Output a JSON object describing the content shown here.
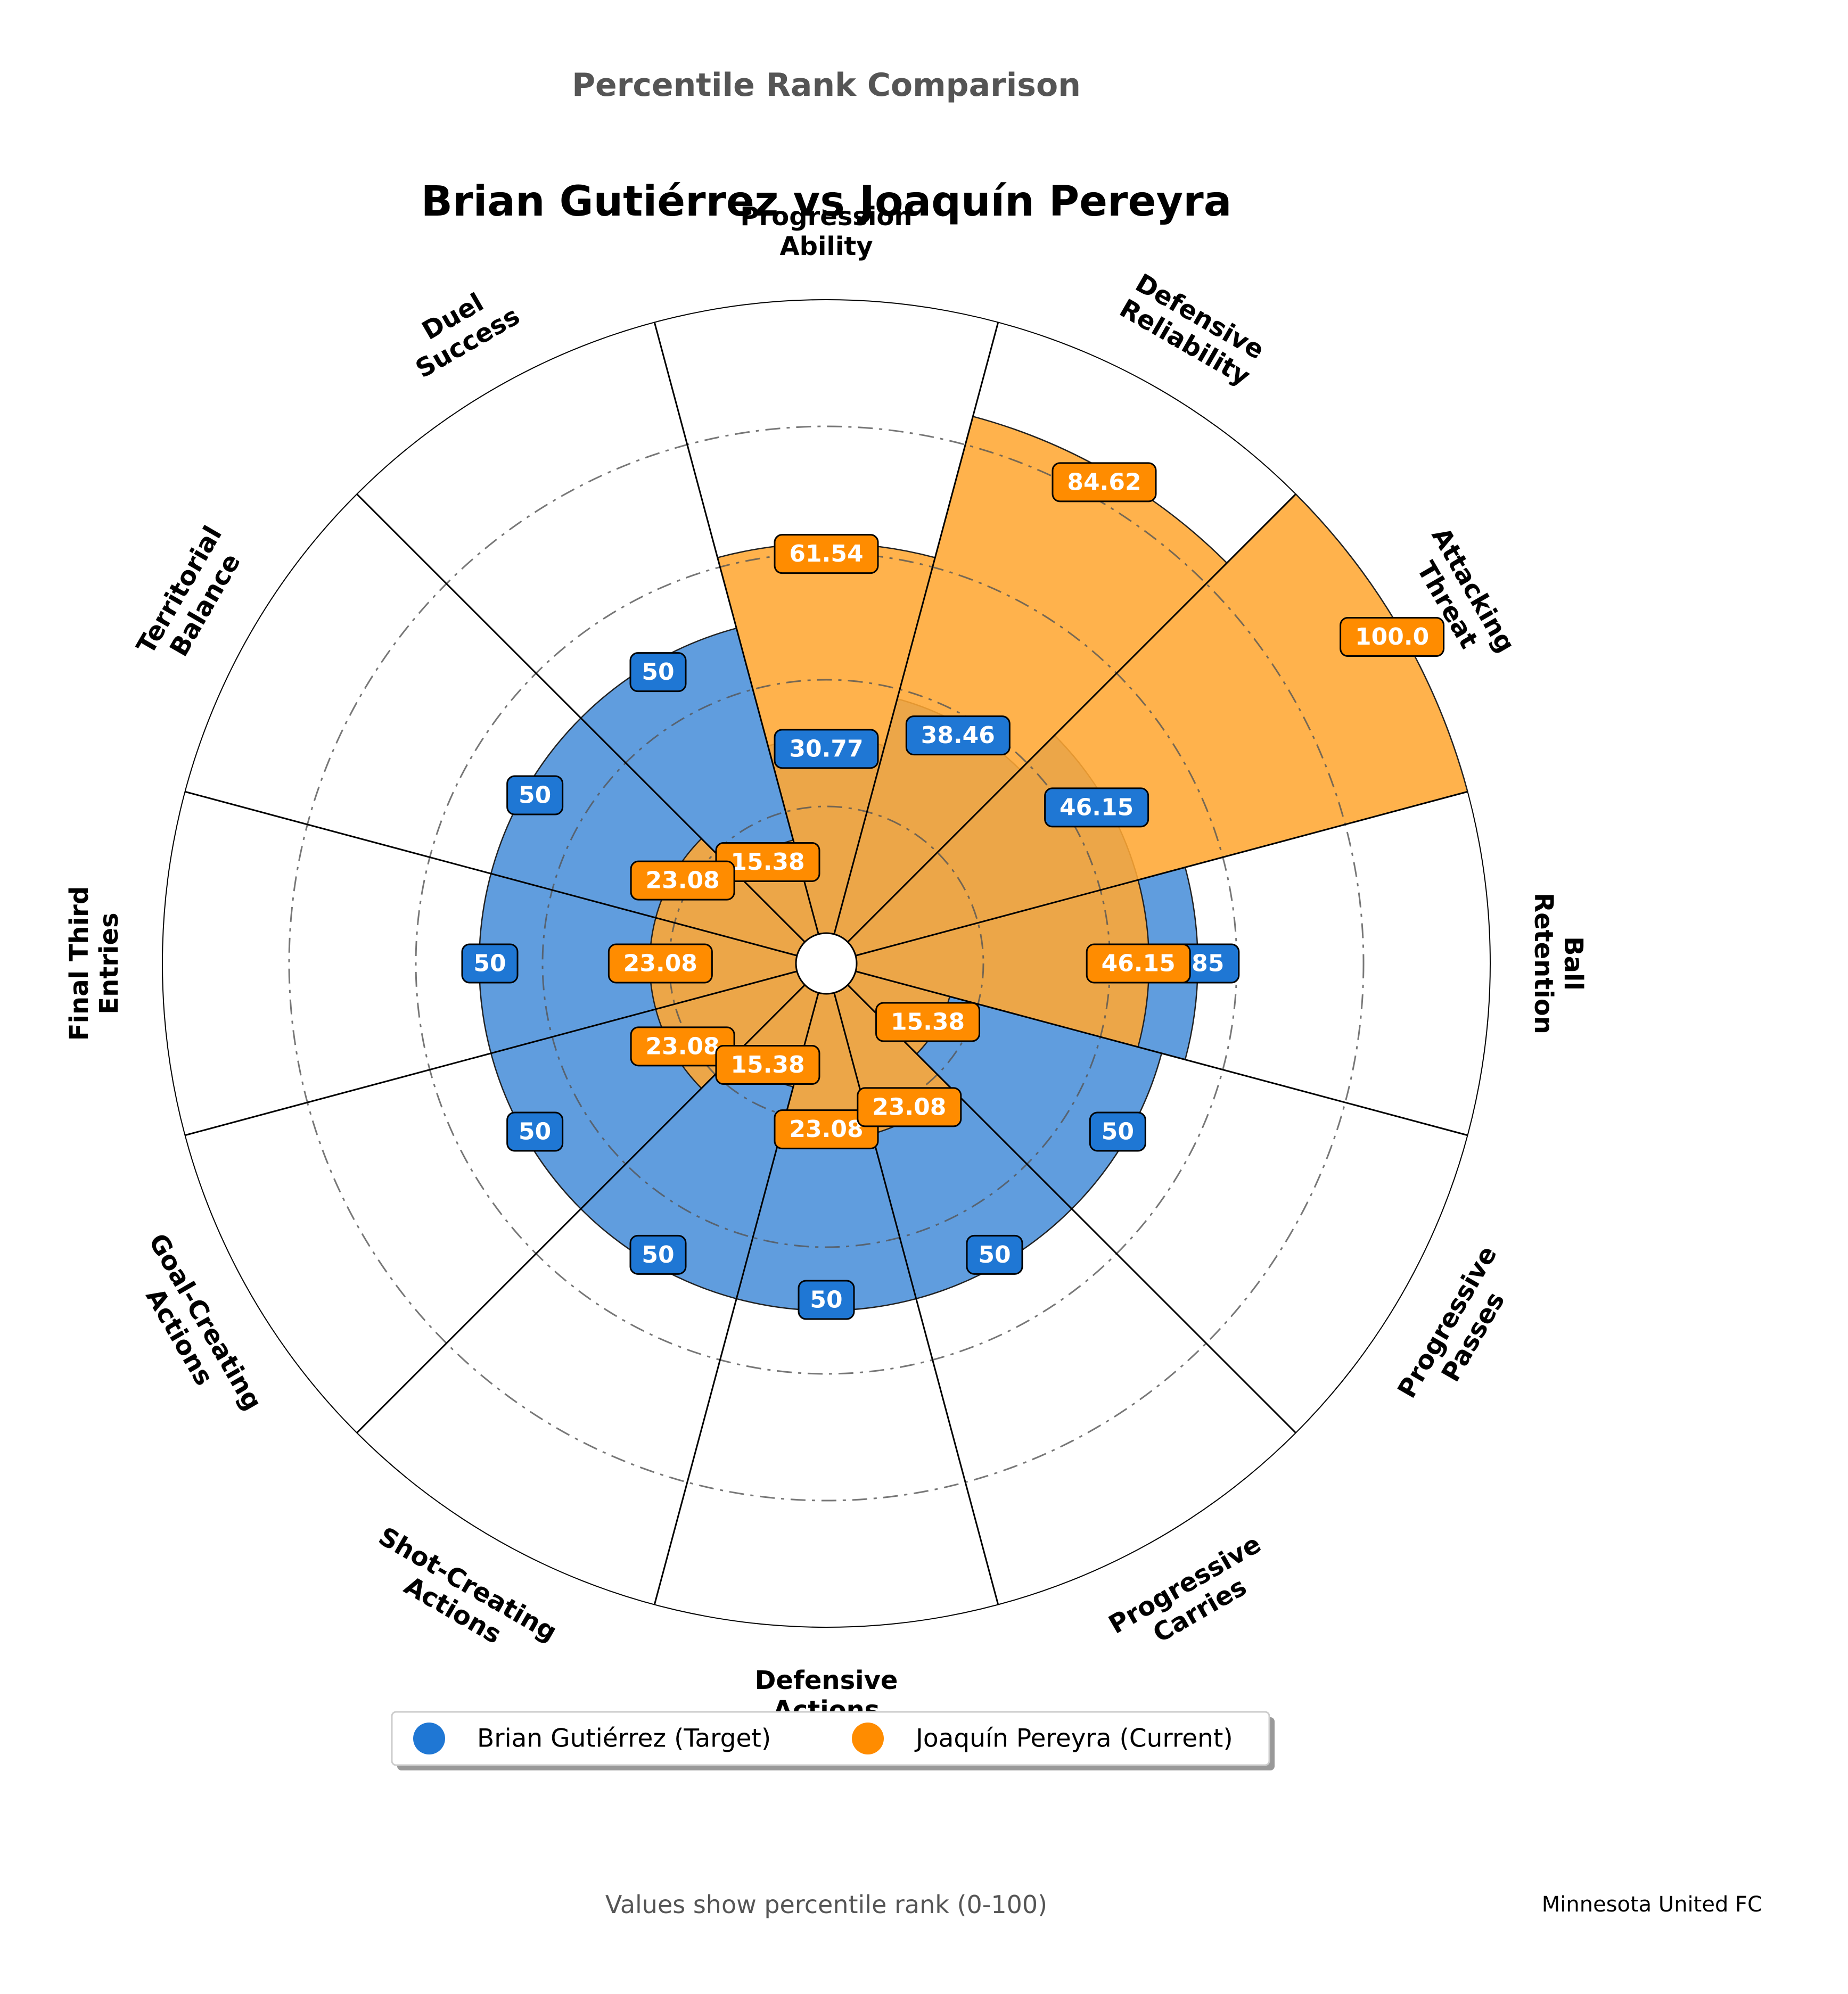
{
  "figure": {
    "suptitle": "Percentile Rank Comparison",
    "title": "Brian Gutiérrez vs Joaquín Pereyra",
    "footer_note": "Values show percentile rank (0-100)",
    "club": "Minnesota United FC"
  },
  "legend": {
    "placement": "bottom-center",
    "items": [
      {
        "label": "Brian Gutiérrez (Target)",
        "color": "#1f77d4"
      },
      {
        "label": "Joaquín Pereyra (Current)",
        "color": "#ff8c00"
      }
    ]
  },
  "chart_data": {
    "type": "polar-bar",
    "rlim": [
      0,
      100
    ],
    "gridlines": [
      20,
      40,
      60,
      80
    ],
    "categories": [
      "Ball\nRetention",
      "Attacking\nThreat",
      "Defensive\nReliability",
      "Progression\nAbility",
      "Duel\nSuccess",
      "Territorial\nBalance",
      "Final Third\nEntries",
      "Goal-Creating\nActions",
      "Shot-Creating\nActions",
      "Defensive\nActions",
      "Progressive\nCarries",
      "Progressive\nPasses"
    ],
    "series": [
      {
        "name": "Brian Gutiérrez (Target)",
        "color": "#4a90d9",
        "label_color": "#1f77d4",
        "values": [
          53.85,
          46.15,
          38.46,
          30.77,
          50,
          50,
          50,
          50,
          50,
          50,
          50,
          50
        ],
        "labels": [
          "53.85",
          "46.15",
          "38.46",
          "30.77",
          "50",
          "50",
          "50",
          "50",
          "50",
          "50",
          "50",
          "50"
        ]
      },
      {
        "name": "Joaquín Pereyra (Current)",
        "color": "#ffa733",
        "label_color": "#ff8c00",
        "values": [
          46.15,
          100.0,
          84.62,
          61.54,
          15.38,
          23.08,
          23.08,
          23.08,
          15.38,
          23.08,
          23.08,
          15.38
        ],
        "labels": [
          "46.15",
          "100.0",
          "84.62",
          "61.54",
          "15.38",
          "23.08",
          "23.08",
          "23.08",
          "15.38",
          "23.08",
          "23.08",
          "15.38"
        ]
      }
    ]
  }
}
